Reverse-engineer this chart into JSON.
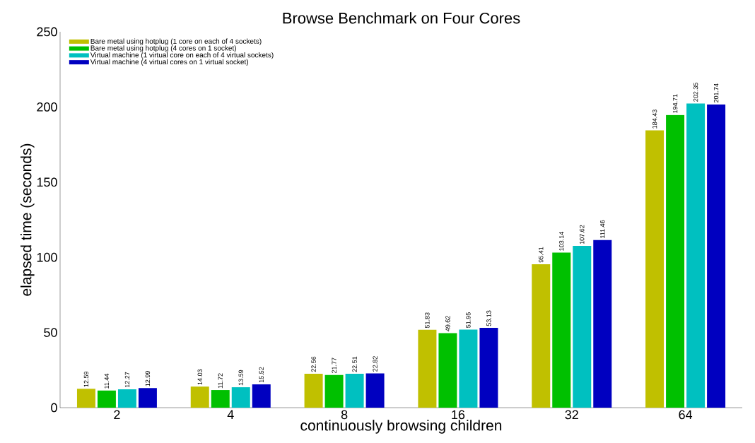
{
  "chart_data": {
    "type": "bar",
    "title": "Browse Benchmark on Four Cores",
    "xlabel": "continuously browsing children",
    "ylabel": "elapsed time (seconds)",
    "categories": [
      "2",
      "4",
      "8",
      "16",
      "32",
      "64"
    ],
    "series": [
      {
        "name": "Bare metal using hotplug (1 core on each of 4 sockets)",
        "color": "#c0c000",
        "values": [
          12.59,
          14.03,
          22.56,
          51.83,
          95.41,
          184.43
        ]
      },
      {
        "name": "Bare metal using hotplug (4 cores on 1 socket)",
        "color": "#00c000",
        "values": [
          11.44,
          11.72,
          21.77,
          49.62,
          103.14,
          194.71
        ]
      },
      {
        "name": "Virtual machine (1 virtual core on each of 4 virtual sockets)",
        "color": "#00c0c0",
        "values": [
          12.27,
          13.59,
          22.51,
          51.95,
          107.62,
          202.35
        ]
      },
      {
        "name": "Virtual machine (4 virtual cores on 1 virtual socket)",
        "color": "#0000c0",
        "values": [
          12.99,
          15.52,
          22.82,
          53.13,
          111.46,
          201.74
        ]
      }
    ],
    "ylim": [
      0,
      250
    ],
    "yticks": [
      0,
      50,
      100,
      150,
      200,
      250
    ],
    "data_labels": true,
    "legend": "top left",
    "grid": false
  }
}
